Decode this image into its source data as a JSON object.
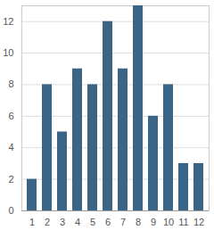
{
  "chart_data": {
    "type": "bar",
    "categories": [
      "1",
      "2",
      "3",
      "4",
      "5",
      "6",
      "7",
      "8",
      "9",
      "10",
      "11",
      "12"
    ],
    "values": [
      2,
      8,
      5,
      9,
      8,
      12,
      9,
      13,
      6,
      8,
      3,
      3
    ],
    "color": "#3a6587",
    "ylim": [
      0,
      13
    ],
    "yticks": [
      0,
      2,
      4,
      6,
      8,
      10,
      12
    ],
    "grid": true
  }
}
